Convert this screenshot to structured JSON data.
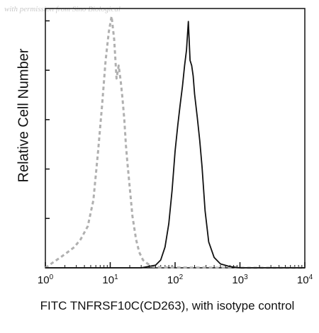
{
  "watermark": "with permission from Sino Biological",
  "chart_data": {
    "type": "line",
    "xlabel": "FITC TNFRSF10C(CD263), with isotype control",
    "ylabel": "Relative Cell Number",
    "x_scale": "log",
    "xlim": [
      1,
      10000
    ],
    "ylim": [
      0,
      100
    ],
    "x_ticks": [
      "10^0",
      "10^1",
      "10^2",
      "10^3",
      "10^4"
    ],
    "grid": false,
    "series": [
      {
        "style": "dashed",
        "color": "#b0b0b0",
        "x": [
          1,
          1.3,
          1.7,
          2.2,
          2.8,
          3.5,
          4.5,
          5.5,
          6.5,
          7.5,
          8.5,
          9.5,
          10.5,
          11.5,
          12.5,
          13.5,
          14.5,
          15.5,
          16.5,
          17.5,
          18.5,
          20,
          22,
          25,
          28,
          32,
          38,
          45,
          60,
          100,
          1000,
          10000
        ],
        "y": [
          0,
          2,
          4,
          6,
          8,
          11,
          16,
          26,
          45,
          63,
          80,
          91,
          97,
          88,
          73,
          78,
          72,
          65,
          57,
          47,
          40,
          31,
          20,
          11,
          6,
          3,
          1.5,
          0.5,
          0.2,
          0.1,
          0,
          0
        ]
      },
      {
        "style": "solid",
        "color": "#111111",
        "x": [
          1,
          30,
          50,
          60,
          70,
          80,
          90,
          100,
          110,
          120,
          130,
          140,
          150,
          160,
          170,
          180,
          190,
          200,
          220,
          240,
          260,
          290,
          330,
          400,
          500,
          700,
          1000,
          10000
        ],
        "y": [
          0,
          0,
          1,
          3,
          8,
          17,
          30,
          45,
          55,
          63,
          70,
          78,
          84,
          95,
          80,
          78,
          74,
          67,
          58,
          49,
          39,
          22,
          10,
          4,
          1.5,
          0.5,
          0,
          0
        ]
      }
    ]
  }
}
